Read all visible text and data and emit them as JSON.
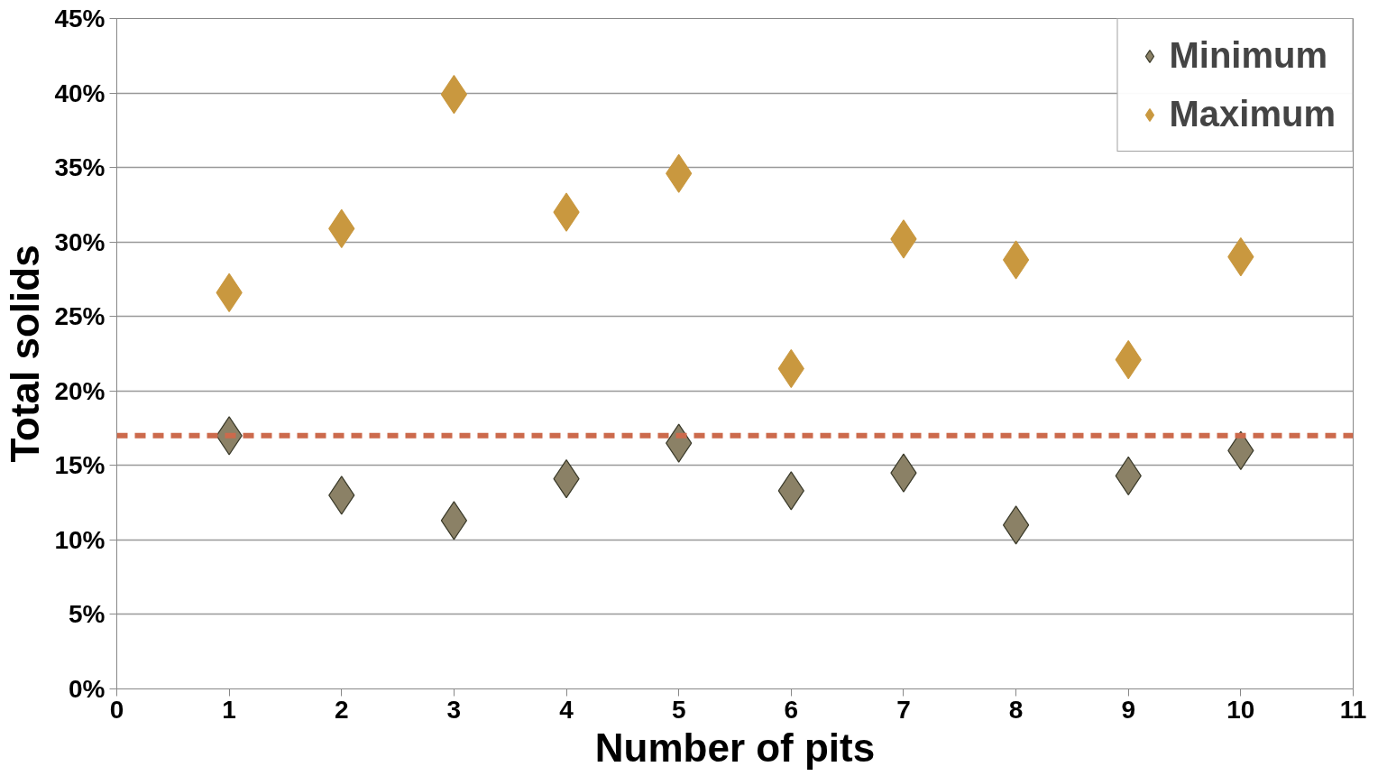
{
  "chart_data": {
    "type": "scatter",
    "xlabel": "Number of pits",
    "ylabel": "Total solids",
    "x": [
      1,
      2,
      3,
      4,
      5,
      6,
      7,
      8,
      9,
      10
    ],
    "series": [
      {
        "name": "Minimum",
        "color": "#8b8166",
        "values": [
          17.0,
          13.0,
          11.3,
          14.1,
          16.5,
          13.3,
          14.5,
          11.0,
          14.3,
          16.0
        ]
      },
      {
        "name": "Maximum",
        "color": "#c9983f",
        "values": [
          26.6,
          30.9,
          39.9,
          32.0,
          34.6,
          21.5,
          30.2,
          28.8,
          22.1,
          29.0
        ]
      }
    ],
    "xlim": [
      0,
      11
    ],
    "xticks": [
      0,
      1,
      2,
      3,
      4,
      5,
      6,
      7,
      8,
      9,
      10,
      11
    ],
    "ylim": [
      0,
      45
    ],
    "yticks": [
      {
        "value": 0,
        "label": "0%"
      },
      {
        "value": 5,
        "label": "5%"
      },
      {
        "value": 10,
        "label": "10%"
      },
      {
        "value": 15,
        "label": "15%"
      },
      {
        "value": 20,
        "label": "20%"
      },
      {
        "value": 25,
        "label": "25%"
      },
      {
        "value": 30,
        "label": "30%"
      },
      {
        "value": 35,
        "label": "35%"
      },
      {
        "value": 40,
        "label": "40%"
      },
      {
        "value": 45,
        "label": "45%"
      }
    ],
    "ref_lines": [
      {
        "axis": "y",
        "value": 17,
        "color": "#cc6a4c",
        "line_style": "dashed"
      }
    ],
    "grid": "y",
    "legend": "top right",
    "marker": "diamond"
  }
}
